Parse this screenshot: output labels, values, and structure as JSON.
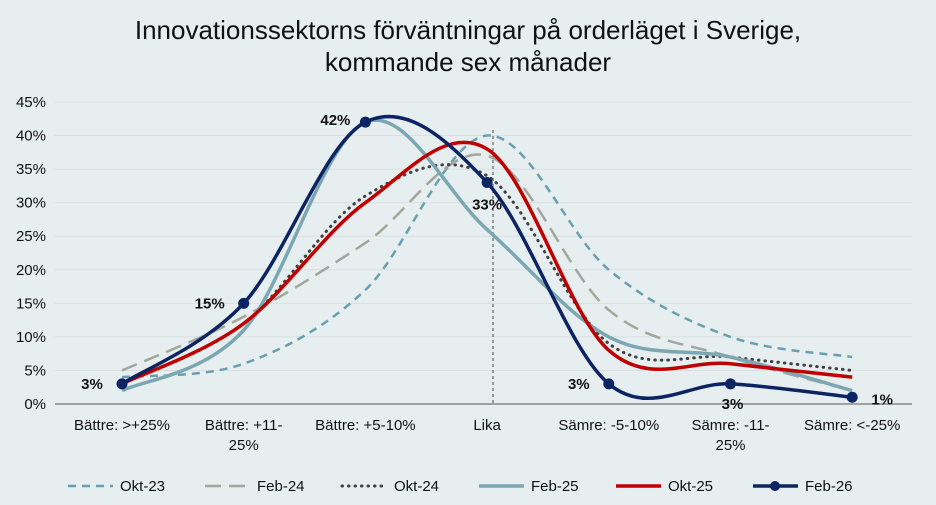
{
  "chart_data": {
    "type": "line",
    "title_line1": "Innovationssektorns förväntningar på orderläget i Sverige,",
    "title_line2": "kommande sex månader",
    "categories": [
      "Bättre: >+25%",
      "Bättre: +11-\n25%",
      "Bättre: +5-10%",
      "Lika",
      "Sämre: -5-10%",
      "Sämre: -11-\n25%",
      "Sämre: <-25%"
    ],
    "ylim": [
      0,
      45
    ],
    "yticks": [
      "0%",
      "5%",
      "10%",
      "15%",
      "20%",
      "25%",
      "30%",
      "35%",
      "40%",
      "45%"
    ],
    "grid": true,
    "legend_position": "bottom",
    "series": [
      {
        "name": "Okt-23",
        "color": "#6a9fb0",
        "style": "dashed",
        "values": [
          4,
          6,
          17,
          40,
          20,
          10,
          7
        ]
      },
      {
        "name": "Feb-24",
        "color": "#a3a69a",
        "style": "longdash",
        "values": [
          5,
          13,
          24,
          37,
          14,
          7,
          2
        ]
      },
      {
        "name": "Okt-24",
        "color": "#404040",
        "style": "dotted",
        "values": [
          3,
          12,
          31,
          34,
          9,
          7,
          5
        ]
      },
      {
        "name": "Feb-25",
        "color": "#7aa7b2",
        "style": "solid",
        "values": [
          2,
          11,
          42,
          26,
          10,
          7,
          2
        ]
      },
      {
        "name": "Okt-25",
        "color": "#c00000",
        "style": "solid",
        "values": [
          3,
          12,
          30,
          38,
          8,
          6,
          4
        ]
      },
      {
        "name": "Feb-26",
        "color": "#0d2463",
        "style": "markers",
        "values": [
          3,
          15,
          42,
          33,
          3,
          3,
          1
        ],
        "labels": [
          "3%",
          "15%",
          "42%",
          "33%",
          "3%",
          "3%",
          "1%"
        ]
      }
    ]
  }
}
